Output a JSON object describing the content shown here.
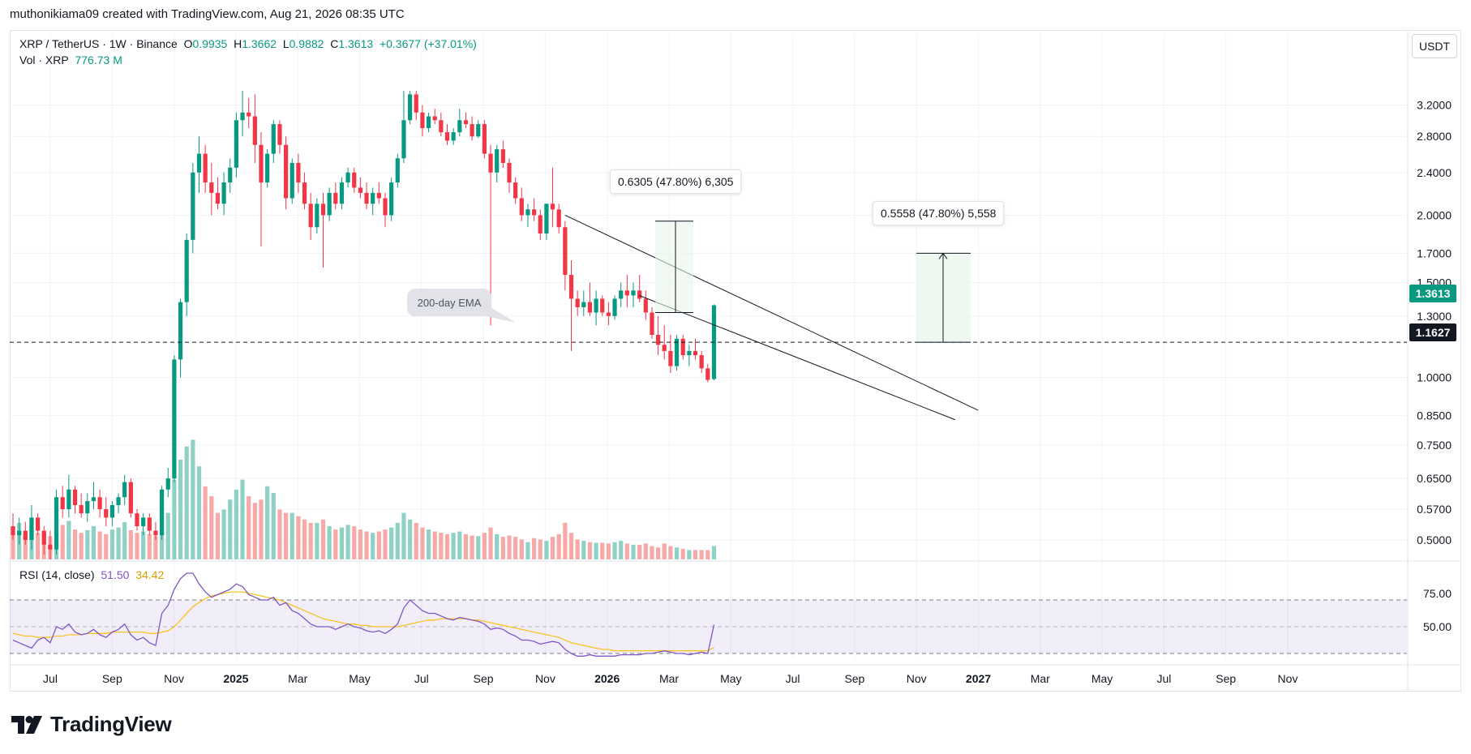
{
  "header": {
    "attribution": "muthonikiama09 created with TradingView.com, Aug 21, 2026 08:35 UTC"
  },
  "legend": {
    "symbol": "XRP / TetherUS · 1W · Binance",
    "o_label": "O",
    "o": "0.9935",
    "h_label": "H",
    "h": "1.3662",
    "l_label": "L",
    "l": "0.9882",
    "c_label": "C",
    "c": "1.3613",
    "change": "+0.3677 (+37.01%)",
    "vol_label": "Vol · XRP",
    "vol": "776.73 M"
  },
  "rsi": {
    "label": "RSI (14, close)",
    "value": "51.50",
    "ma": "34.42"
  },
  "toolbar": {
    "unit": "USDT"
  },
  "brand": {
    "name": "TradingView"
  },
  "annotations": {
    "ema_callout": "200-day EMA",
    "measure_left": "0.6305 (47.80%) 6,305",
    "measure_right": "0.5558 (47.80%) 5,558",
    "last_price": "1.3613",
    "horizontal_line": "1.1627"
  },
  "colors": {
    "up": "#089981",
    "down": "#f23645",
    "rsi": "#7e57c2",
    "rsi_ma": "#f7c325",
    "vol_up": "#8fd2c5",
    "vol_down": "#f7a9a7"
  },
  "chart_data": {
    "type": "candlestick",
    "scale": "log",
    "price_ticks": [
      "3.2000",
      "2.8000",
      "2.4000",
      "2.0000",
      "1.7000",
      "1.5000",
      "1.3000",
      "1.0000",
      "0.8500",
      "0.7500",
      "0.6500",
      "0.5700",
      "0.5000"
    ],
    "x_ticks": [
      "Jul",
      "Sep",
      "Nov",
      "2025",
      "Mar",
      "May",
      "Jul",
      "Sep",
      "Nov",
      "2026",
      "Mar",
      "May",
      "Jul",
      "Sep",
      "Nov",
      "2027",
      "Mar",
      "May",
      "Jul",
      "Sep",
      "Nov"
    ],
    "rsi_ticks": [
      "75.00",
      "50.00"
    ],
    "rsi_levels": [
      70,
      50,
      30
    ],
    "ohlc": [
      [
        0.53,
        0.56,
        0.5,
        0.51
      ],
      [
        0.51,
        0.55,
        0.49,
        0.52
      ],
      [
        0.52,
        0.54,
        0.49,
        0.5
      ],
      [
        0.5,
        0.58,
        0.48,
        0.55
      ],
      [
        0.55,
        0.56,
        0.51,
        0.52
      ],
      [
        0.52,
        0.53,
        0.47,
        0.49
      ],
      [
        0.49,
        0.52,
        0.46,
        0.48
      ],
      [
        0.48,
        0.62,
        0.47,
        0.6
      ],
      [
        0.6,
        0.63,
        0.55,
        0.57
      ],
      [
        0.57,
        0.66,
        0.55,
        0.62
      ],
      [
        0.62,
        0.63,
        0.56,
        0.58
      ],
      [
        0.58,
        0.61,
        0.55,
        0.56
      ],
      [
        0.56,
        0.61,
        0.54,
        0.59
      ],
      [
        0.59,
        0.64,
        0.57,
        0.6
      ],
      [
        0.6,
        0.62,
        0.55,
        0.57
      ],
      [
        0.57,
        0.6,
        0.53,
        0.55
      ],
      [
        0.55,
        0.59,
        0.53,
        0.58
      ],
      [
        0.58,
        0.61,
        0.56,
        0.6
      ],
      [
        0.6,
        0.66,
        0.58,
        0.64
      ],
      [
        0.64,
        0.65,
        0.55,
        0.56
      ],
      [
        0.56,
        0.57,
        0.52,
        0.53
      ],
      [
        0.53,
        0.56,
        0.51,
        0.55
      ],
      [
        0.55,
        0.56,
        0.51,
        0.52
      ],
      [
        0.52,
        0.54,
        0.5,
        0.51
      ],
      [
        0.51,
        0.63,
        0.5,
        0.62
      ],
      [
        0.62,
        0.68,
        0.6,
        0.65
      ],
      [
        0.65,
        1.1,
        0.64,
        1.08
      ],
      [
        1.08,
        1.4,
        1.0,
        1.38
      ],
      [
        1.38,
        1.85,
        1.3,
        1.8
      ],
      [
        1.8,
        2.5,
        1.7,
        2.4
      ],
      [
        2.4,
        2.8,
        2.2,
        2.6
      ],
      [
        2.6,
        2.7,
        2.2,
        2.3
      ],
      [
        2.3,
        2.5,
        2.0,
        2.2
      ],
      [
        2.2,
        2.35,
        2.05,
        2.1
      ],
      [
        2.1,
        2.4,
        2.0,
        2.3
      ],
      [
        2.3,
        2.55,
        2.2,
        2.45
      ],
      [
        2.45,
        3.1,
        2.35,
        3.0
      ],
      [
        3.0,
        3.4,
        2.8,
        3.1
      ],
      [
        3.1,
        3.3,
        2.9,
        3.05
      ],
      [
        3.05,
        3.35,
        2.5,
        2.7
      ],
      [
        2.7,
        2.85,
        1.75,
        2.3
      ],
      [
        2.3,
        2.65,
        2.25,
        2.6
      ],
      [
        2.6,
        3.0,
        2.5,
        2.95
      ],
      [
        2.95,
        3.0,
        2.6,
        2.7
      ],
      [
        2.7,
        2.8,
        2.05,
        2.15
      ],
      [
        2.15,
        2.55,
        2.1,
        2.5
      ],
      [
        2.5,
        2.6,
        2.2,
        2.3
      ],
      [
        2.3,
        2.4,
        2.05,
        2.1
      ],
      [
        2.1,
        2.2,
        1.8,
        1.9
      ],
      [
        1.9,
        2.15,
        1.85,
        2.1
      ],
      [
        2.1,
        2.2,
        1.6,
        2.0
      ],
      [
        2.0,
        2.25,
        1.95,
        2.2
      ],
      [
        2.2,
        2.3,
        2.05,
        2.1
      ],
      [
        2.1,
        2.35,
        2.05,
        2.3
      ],
      [
        2.3,
        2.45,
        2.25,
        2.4
      ],
      [
        2.4,
        2.45,
        2.2,
        2.25
      ],
      [
        2.25,
        2.35,
        2.15,
        2.2
      ],
      [
        2.2,
        2.3,
        2.05,
        2.1
      ],
      [
        2.1,
        2.25,
        2.0,
        2.2
      ],
      [
        2.2,
        2.3,
        2.1,
        2.15
      ],
      [
        2.15,
        2.2,
        1.9,
        2.0
      ],
      [
        2.0,
        2.35,
        1.95,
        2.3
      ],
      [
        2.3,
        2.6,
        2.25,
        2.55
      ],
      [
        2.55,
        3.4,
        2.5,
        3.0
      ],
      [
        3.0,
        3.4,
        2.95,
        3.35
      ],
      [
        3.35,
        3.4,
        3.0,
        3.1
      ],
      [
        3.1,
        3.2,
        2.8,
        2.9
      ],
      [
        2.9,
        3.1,
        2.85,
        3.05
      ],
      [
        3.05,
        3.15,
        2.95,
        3.0
      ],
      [
        3.0,
        3.1,
        2.8,
        2.85
      ],
      [
        2.85,
        2.95,
        2.7,
        2.75
      ],
      [
        2.75,
        2.9,
        2.7,
        2.85
      ],
      [
        2.85,
        3.15,
        2.8,
        3.0
      ],
      [
        3.0,
        3.1,
        2.9,
        2.95
      ],
      [
        2.95,
        3.05,
        2.75,
        2.8
      ],
      [
        2.8,
        3.0,
        2.78,
        2.95
      ],
      [
        2.95,
        3.0,
        2.55,
        2.6
      ],
      [
        2.6,
        2.7,
        1.25,
        2.4
      ],
      [
        2.4,
        2.7,
        2.3,
        2.65
      ],
      [
        2.65,
        2.75,
        2.45,
        2.5
      ],
      [
        2.5,
        2.55,
        2.2,
        2.3
      ],
      [
        2.3,
        2.35,
        2.1,
        2.15
      ],
      [
        2.15,
        2.25,
        1.95,
        2.0
      ],
      [
        2.0,
        2.1,
        1.9,
        2.05
      ],
      [
        2.05,
        2.15,
        1.95,
        2.0
      ],
      [
        2.0,
        2.05,
        1.8,
        1.85
      ],
      [
        1.85,
        2.1,
        1.8,
        2.1
      ],
      [
        2.1,
        2.45,
        1.9,
        2.05
      ],
      [
        2.05,
        2.1,
        1.85,
        1.9
      ],
      [
        1.9,
        1.95,
        1.45,
        1.55
      ],
      [
        1.55,
        1.65,
        1.12,
        1.4
      ],
      [
        1.4,
        1.45,
        1.3,
        1.35
      ],
      [
        1.35,
        1.45,
        1.3,
        1.38
      ],
      [
        1.38,
        1.5,
        1.3,
        1.32
      ],
      [
        1.32,
        1.45,
        1.25,
        1.4
      ],
      [
        1.4,
        1.42,
        1.3,
        1.32
      ],
      [
        1.32,
        1.38,
        1.25,
        1.3
      ],
      [
        1.3,
        1.42,
        1.28,
        1.4
      ],
      [
        1.4,
        1.5,
        1.35,
        1.45
      ],
      [
        1.45,
        1.55,
        1.35,
        1.42
      ],
      [
        1.42,
        1.5,
        1.35,
        1.45
      ],
      [
        1.45,
        1.55,
        1.38,
        1.4
      ],
      [
        1.4,
        1.45,
        1.28,
        1.32
      ],
      [
        1.32,
        1.35,
        1.18,
        1.2
      ],
      [
        1.2,
        1.3,
        1.1,
        1.15
      ],
      [
        1.15,
        1.25,
        1.08,
        1.12
      ],
      [
        1.12,
        1.2,
        1.02,
        1.05
      ],
      [
        1.05,
        1.2,
        1.03,
        1.18
      ],
      [
        1.18,
        1.2,
        1.08,
        1.1
      ],
      [
        1.1,
        1.15,
        1.05,
        1.12
      ],
      [
        1.12,
        1.18,
        1.08,
        1.1
      ],
      [
        1.1,
        1.12,
        1.02,
        1.04
      ],
      [
        1.04,
        1.06,
        0.98,
        0.99
      ],
      [
        0.9935,
        1.3662,
        0.9882,
        1.3613
      ]
    ],
    "volume": [
      48,
      55,
      42,
      50,
      40,
      38,
      35,
      60,
      52,
      58,
      45,
      40,
      44,
      50,
      42,
      38,
      45,
      48,
      56,
      44,
      40,
      42,
      38,
      35,
      62,
      70,
      120,
      150,
      170,
      180,
      140,
      110,
      95,
      70,
      75,
      90,
      105,
      120,
      95,
      85,
      90,
      110,
      100,
      75,
      70,
      70,
      65,
      60,
      55,
      55,
      60,
      50,
      45,
      48,
      52,
      50,
      45,
      42,
      40,
      42,
      45,
      48,
      55,
      70,
      60,
      55,
      48,
      45,
      42,
      40,
      38,
      40,
      42,
      38,
      36,
      35,
      40,
      48,
      38,
      34,
      36,
      34,
      30,
      26,
      32,
      30,
      28,
      34,
      38,
      55,
      40,
      30,
      28,
      26,
      25,
      25,
      24,
      26,
      28,
      24,
      22,
      22,
      24,
      20,
      18,
      24,
      20,
      18,
      16,
      14,
      14,
      14,
      14,
      20
    ],
    "rsi_values": [
      40,
      38,
      36,
      34,
      40,
      42,
      38,
      50,
      48,
      52,
      46,
      44,
      45,
      48,
      44,
      42,
      46,
      48,
      52,
      44,
      40,
      42,
      38,
      36,
      60,
      66,
      78,
      86,
      90,
      90,
      82,
      76,
      72,
      74,
      76,
      78,
      82,
      80,
      74,
      72,
      70,
      70,
      72,
      66,
      68,
      62,
      60,
      56,
      52,
      50,
      50,
      50,
      48,
      50,
      52,
      50,
      49,
      47,
      46,
      47,
      45,
      48,
      52,
      64,
      70,
      66,
      62,
      60,
      60,
      58,
      56,
      55,
      57,
      56,
      55,
      54,
      52,
      48,
      49,
      48,
      45,
      43,
      40,
      40,
      39,
      37,
      38,
      39,
      38,
      33,
      30,
      28,
      28,
      29,
      28,
      28,
      28,
      28,
      29,
      29,
      29,
      29,
      30,
      30,
      31,
      32,
      31,
      30,
      30,
      29,
      30,
      31,
      30,
      51.5
    ],
    "rsi_ma": [
      45,
      44,
      43,
      43,
      42,
      42,
      42,
      43,
      43,
      44,
      44,
      44,
      45,
      45,
      45,
      45,
      46,
      46,
      46,
      46,
      46,
      46,
      45,
      45,
      46,
      47,
      50,
      55,
      60,
      65,
      68,
      71,
      73,
      74,
      75,
      76,
      76,
      76,
      75,
      74,
      73,
      72,
      71,
      70,
      68,
      66,
      64,
      62,
      60,
      58,
      56,
      55,
      54,
      53,
      52,
      52,
      51,
      51,
      50,
      50,
      50,
      50,
      50,
      51,
      52,
      53,
      54,
      55,
      55,
      56,
      56,
      56,
      56,
      56,
      55,
      55,
      54,
      53,
      52,
      51,
      50,
      49,
      48,
      47,
      46,
      45,
      44,
      43,
      42,
      40,
      38,
      37,
      36,
      35,
      34,
      33,
      33,
      32,
      32,
      32,
      32,
      32,
      32,
      32,
      32,
      32,
      32,
      32,
      32,
      32,
      32,
      32,
      32,
      34.42
    ]
  }
}
